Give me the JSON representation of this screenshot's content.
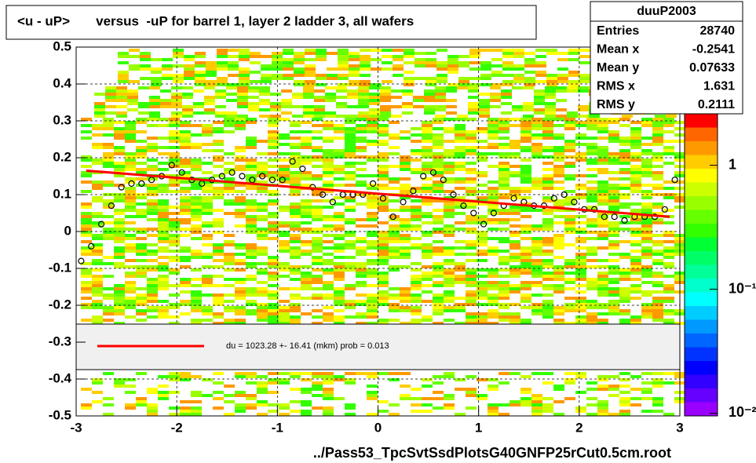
{
  "chart_data": {
    "type": "profile",
    "title": "<u - uP>       versus  -uP for barrel 1, layer 2 ladder 3, all wafers",
    "x_label": "../Pass53_TpcSvtSsdPlotsG40GNFP25rCut0.5cm.root",
    "xlim": [
      -3,
      3
    ],
    "xticks": [
      -3,
      -2,
      -1,
      0,
      1,
      2,
      3
    ],
    "ylim": [
      -0.5,
      0.5
    ],
    "yticks": [
      -0.5,
      -0.4,
      -0.3,
      -0.2,
      -0.1,
      0,
      0.1,
      0.2,
      0.3,
      0.4,
      0.5
    ],
    "grid": true,
    "zlim": [
      0.0095,
      2.6
    ],
    "zlog": true,
    "zticks": [
      1,
      {
        "value": 0.1,
        "label": "10⁻¹"
      },
      {
        "value": 0.01,
        "label": "10⁻²"
      }
    ],
    "series": [
      {
        "kind": "points",
        "color": "#000000",
        "x": [
          -2.95,
          -2.85,
          -2.75,
          -2.65,
          -2.55,
          -2.45,
          -2.35,
          -2.25,
          -2.15,
          -2.05,
          -1.95,
          -1.85,
          -1.75,
          -1.65,
          -1.55,
          -1.45,
          -1.35,
          -1.25,
          -1.15,
          -1.05,
          -0.95,
          -0.85,
          -0.75,
          -0.65,
          -0.55,
          -0.45,
          -0.35,
          -0.25,
          -0.15,
          -0.05,
          0.05,
          0.15,
          0.25,
          0.35,
          0.45,
          0.55,
          0.65,
          0.75,
          0.85,
          0.95,
          1.05,
          1.15,
          1.25,
          1.35,
          1.45,
          1.55,
          1.65,
          1.75,
          1.85,
          1.95,
          2.05,
          2.15,
          2.25,
          2.35,
          2.45,
          2.55,
          2.65,
          2.75,
          2.85,
          2.95
        ],
        "values": [
          -0.08,
          -0.04,
          0.02,
          0.07,
          0.12,
          0.13,
          0.13,
          0.14,
          0.15,
          0.18,
          0.16,
          0.14,
          0.13,
          0.14,
          0.15,
          0.16,
          0.15,
          0.14,
          0.15,
          0.14,
          0.14,
          0.19,
          0.17,
          0.12,
          0.1,
          0.08,
          0.1,
          0.1,
          0.1,
          0.13,
          0.09,
          0.04,
          0.08,
          0.11,
          0.15,
          0.16,
          0.14,
          0.1,
          0.07,
          0.05,
          0.02,
          0.05,
          0.07,
          0.09,
          0.08,
          0.07,
          0.07,
          0.09,
          0.1,
          0.08,
          0.06,
          0.06,
          0.04,
          0.04,
          0.03,
          0.04,
          0.04,
          0.04,
          0.06,
          0.14
        ]
      },
      {
        "kind": "fit",
        "color": "#ff0000",
        "x": [
          -2.9,
          2.9
        ],
        "values": [
          0.165,
          0.04
        ]
      }
    ],
    "legend": "du = 1023.28 +- 16.41 (mkm) prob = 0.013",
    "stats": {
      "title": "duuP2003",
      "rows": [
        {
          "label": "Entries",
          "value": 28740
        },
        {
          "label": "Mean x",
          "value": -0.2541
        },
        {
          "label": "Mean y",
          "value": 0.07633
        },
        {
          "label": "RMS x",
          "value": 1.631
        },
        {
          "label": "RMS y",
          "value": 0.2111
        }
      ]
    }
  }
}
